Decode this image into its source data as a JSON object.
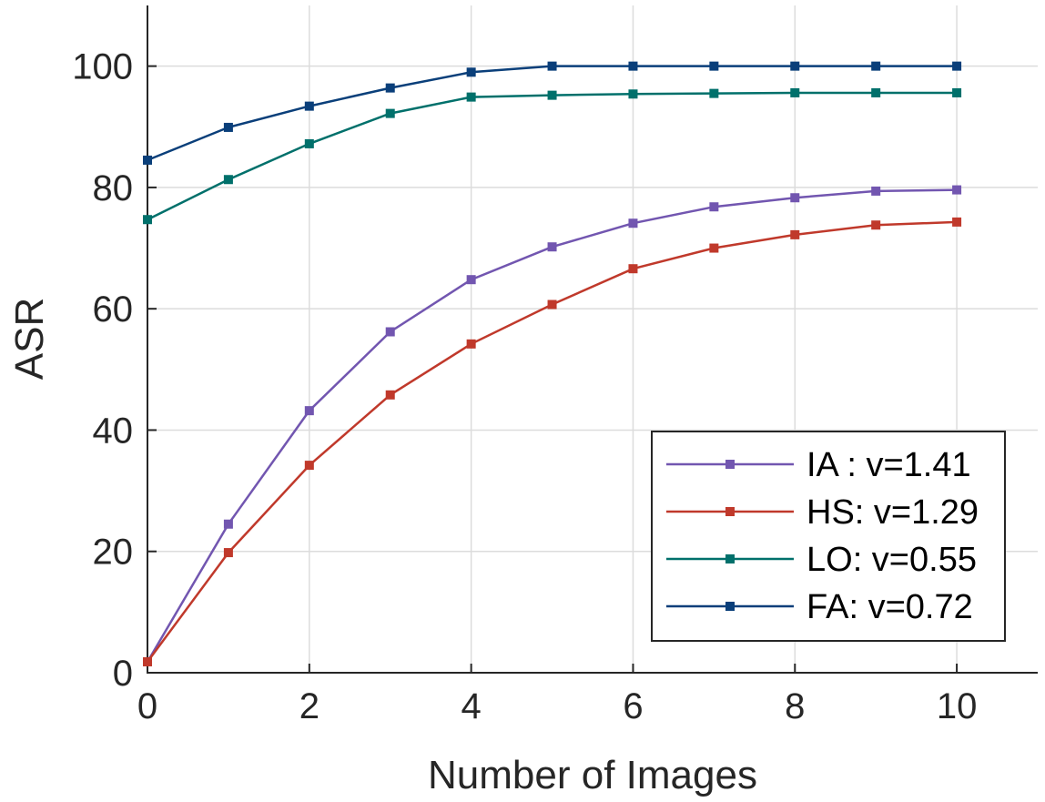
{
  "chart_data": {
    "type": "line",
    "title": "",
    "xlabel": "Number of Images",
    "ylabel": "ASR",
    "xlim": [
      0,
      11
    ],
    "ylim": [
      0,
      110
    ],
    "xticks": [
      0,
      2,
      4,
      6,
      8,
      10
    ],
    "yticks": [
      0,
      20,
      40,
      60,
      80,
      100
    ],
    "grid": true,
    "legend_position": "bottom-right",
    "x": [
      0,
      1,
      2,
      3,
      4,
      5,
      6,
      7,
      8,
      9,
      10
    ],
    "series": [
      {
        "name": "IA : v=1.41",
        "color": "#7256b0",
        "marker": "square",
        "values": [
          1.8,
          24.5,
          43.2,
          56.2,
          64.8,
          70.2,
          74.1,
          76.8,
          78.3,
          79.4,
          79.6
        ]
      },
      {
        "name": "HS: v=1.29",
        "color": "#c0392b",
        "marker": "square",
        "values": [
          1.8,
          19.8,
          34.2,
          45.8,
          54.2,
          60.7,
          66.6,
          70.0,
          72.2,
          73.8,
          74.3
        ]
      },
      {
        "name": "LO: v=0.55",
        "color": "#00706b",
        "marker": "square",
        "values": [
          74.7,
          81.3,
          87.2,
          92.2,
          94.9,
          95.2,
          95.4,
          95.5,
          95.6,
          95.6,
          95.6
        ]
      },
      {
        "name": "FA: v=0.72",
        "color": "#0a3f7a",
        "marker": "square",
        "values": [
          84.5,
          89.9,
          93.4,
          96.4,
          99.0,
          100.0,
          100.0,
          100.0,
          100.0,
          100.0,
          100.0
        ]
      }
    ]
  }
}
